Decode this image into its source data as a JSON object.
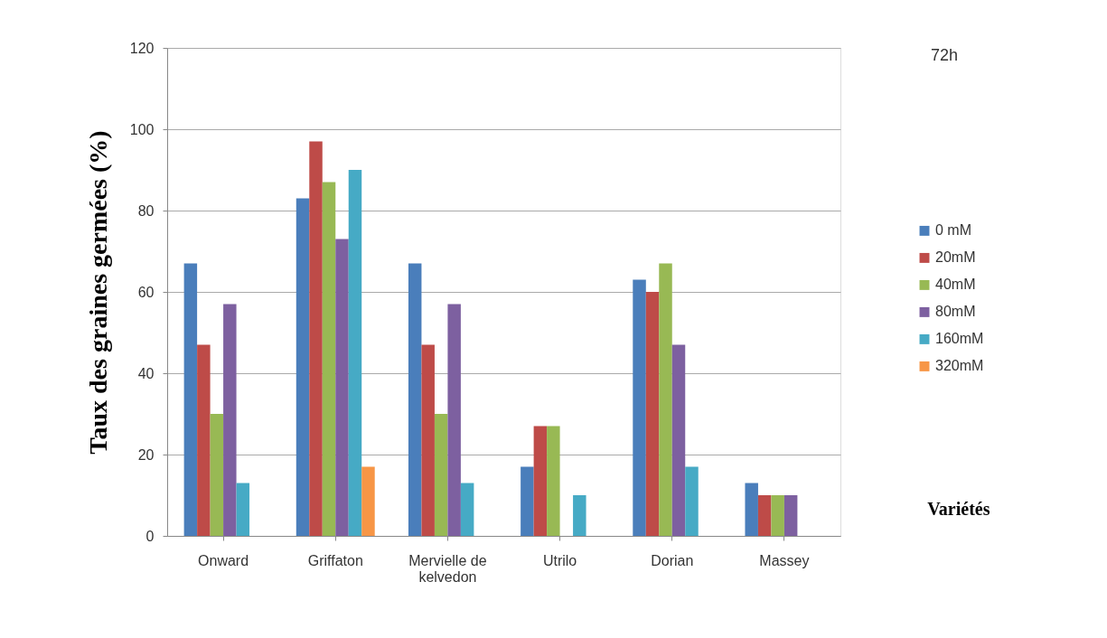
{
  "chart_data": {
    "type": "bar",
    "ylabel": "Taux des graines germées (%)",
    "xlabel": "Variétés",
    "annotations": [
      "72h"
    ],
    "categories": [
      "Onward",
      "Griffaton",
      "Mervielle de kelvedon",
      "Utrilo",
      "Dorian",
      "Massey"
    ],
    "series": [
      {
        "name": "0 mM",
        "color": "#4a7ebb",
        "values": [
          67,
          83,
          67,
          17,
          63,
          13
        ]
      },
      {
        "name": "20mM",
        "color": "#be4b48",
        "values": [
          47,
          97,
          47,
          27,
          60,
          10
        ]
      },
      {
        "name": "40mM",
        "color": "#98b954",
        "values": [
          30,
          87,
          30,
          27,
          67,
          10
        ]
      },
      {
        "name": "80mM",
        "color": "#7d60a0",
        "values": [
          57,
          73,
          57,
          0,
          47,
          10
        ]
      },
      {
        "name": "160mM",
        "color": "#46aac5",
        "values": [
          13,
          90,
          13,
          10,
          17,
          0
        ]
      },
      {
        "name": "320mM",
        "color": "#f79646",
        "values": [
          0,
          17,
          0,
          0,
          0,
          0
        ]
      }
    ],
    "ylim": [
      0,
      120
    ],
    "yticks": [
      0,
      20,
      40,
      60,
      80,
      100,
      120
    ],
    "grid": "y",
    "legend": "right"
  }
}
